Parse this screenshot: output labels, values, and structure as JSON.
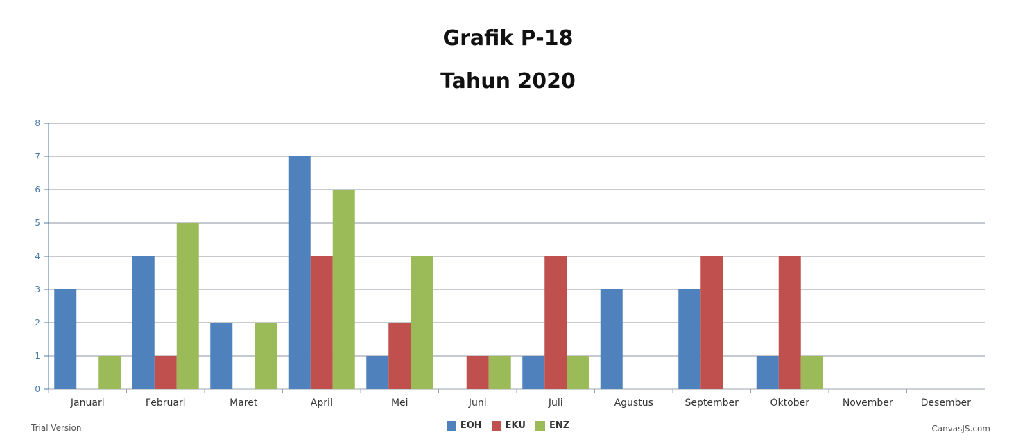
{
  "chart_data": {
    "type": "bar",
    "title": "Grafik P-18",
    "subtitle": "Tahun 2020",
    "categories": [
      "Januari",
      "Februari",
      "Maret",
      "April",
      "Mei",
      "Juni",
      "Juli",
      "Agustus",
      "September",
      "Oktober",
      "November",
      "Desember"
    ],
    "series": [
      {
        "name": "EOH",
        "color": "#4f81bd",
        "values": [
          3,
          4,
          2,
          7,
          1,
          0,
          1,
          3,
          3,
          1,
          0,
          0
        ]
      },
      {
        "name": "EKU",
        "color": "#c0504d",
        "values": [
          0,
          1,
          0,
          4,
          2,
          1,
          4,
          0,
          4,
          4,
          0,
          0
        ]
      },
      {
        "name": "ENZ",
        "color": "#9bbb59",
        "values": [
          1,
          5,
          2,
          6,
          4,
          1,
          1,
          0,
          0,
          1,
          0,
          0
        ]
      }
    ],
    "ylim": [
      0,
      8
    ],
    "yticks": [
      0,
      1,
      2,
      3,
      4,
      5,
      6,
      7,
      8
    ],
    "grid": true,
    "legend_position": "bottom-center"
  },
  "footer": {
    "left": "Trial Version",
    "right": "CanvasJS.com"
  }
}
